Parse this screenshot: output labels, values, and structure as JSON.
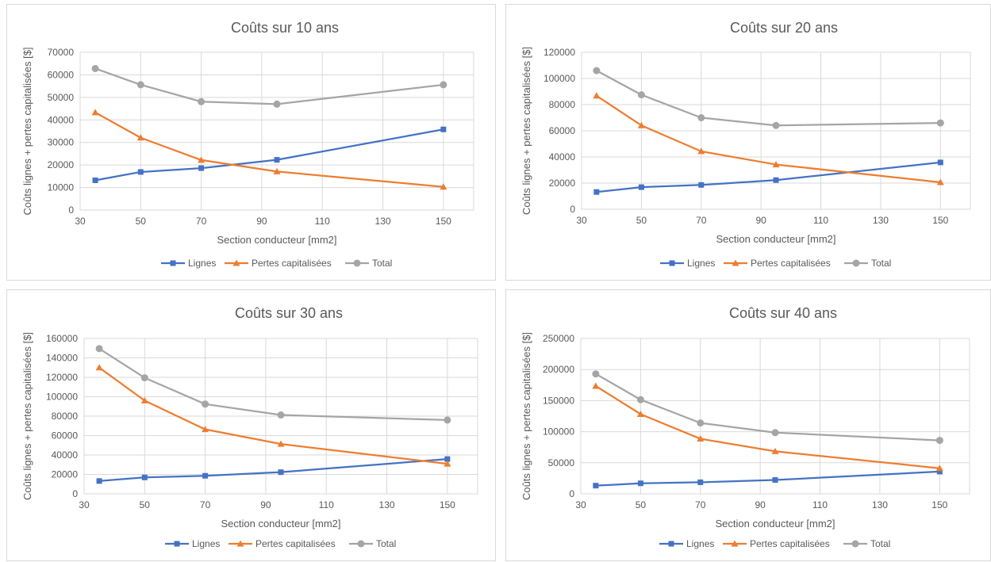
{
  "colors": {
    "Lignes": "#4472c4",
    "Pertes capitalisées": "#ed7d31",
    "Total": "#a5a5a5",
    "grid": "#d9d9d9",
    "text": "#595959"
  },
  "markers": {
    "Lignes": "square",
    "Pertes capitalisées": "triangle",
    "Total": "circle"
  },
  "chart_data": [
    {
      "type": "line",
      "title": "Coûts sur 10 ans",
      "xlabel": "Section conducteur [mm2]",
      "ylabel": "Coûts lignes + pertes capitalisées [$]",
      "xlim": [
        30,
        160
      ],
      "x_ticks": [
        30,
        50,
        70,
        90,
        110,
        130,
        150
      ],
      "ylim": [
        0,
        70000
      ],
      "y_ticks": [
        0,
        10000,
        20000,
        30000,
        40000,
        50000,
        60000,
        70000
      ],
      "grid": true,
      "legend": "bottom",
      "x": [
        35,
        50,
        70,
        95,
        150
      ],
      "series": [
        {
          "name": "Lignes",
          "values": [
            13200,
            16900,
            18600,
            22300,
            35800
          ]
        },
        {
          "name": "Pertes capitalisées",
          "values": [
            43300,
            32100,
            22200,
            17100,
            10300
          ]
        },
        {
          "name": "Total",
          "values": [
            62800,
            55600,
            48100,
            47000,
            55600
          ]
        }
      ]
    },
    {
      "type": "line",
      "title": "Coûts sur 20 ans",
      "xlabel": "Section conducteur [mm2]",
      "ylabel": "Coûts lignes + pertes capitalisées [$]",
      "xlim": [
        30,
        160
      ],
      "x_ticks": [
        30,
        50,
        70,
        90,
        110,
        130,
        150
      ],
      "ylim": [
        0,
        120000
      ],
      "y_ticks": [
        0,
        20000,
        40000,
        60000,
        80000,
        100000,
        120000
      ],
      "grid": true,
      "legend": "bottom",
      "x": [
        35,
        50,
        70,
        95,
        150
      ],
      "series": [
        {
          "name": "Lignes",
          "values": [
            13200,
            16900,
            18600,
            22300,
            35800
          ]
        },
        {
          "name": "Pertes capitalisées",
          "values": [
            86800,
            64100,
            44300,
            34200,
            20600
          ]
        },
        {
          "name": "Total",
          "values": [
            106000,
            87500,
            70000,
            64100,
            66000
          ]
        }
      ]
    },
    {
      "type": "line",
      "title": "Coûts sur 30 ans",
      "xlabel": "Section conducteur [mm2]",
      "ylabel": "Coûts lignes + pertes capitalisées [$]",
      "xlim": [
        30,
        160
      ],
      "x_ticks": [
        30,
        50,
        70,
        90,
        110,
        130,
        150
      ],
      "ylim": [
        0,
        160000
      ],
      "y_ticks": [
        0,
        20000,
        40000,
        60000,
        80000,
        100000,
        120000,
        140000,
        160000
      ],
      "grid": true,
      "legend": "bottom",
      "x": [
        35,
        50,
        70,
        95,
        150
      ],
      "series": [
        {
          "name": "Lignes",
          "values": [
            13200,
            16900,
            18600,
            22300,
            35800
          ]
        },
        {
          "name": "Pertes capitalisées",
          "values": [
            130000,
            96000,
            66400,
            51300,
            30900
          ]
        },
        {
          "name": "Total",
          "values": [
            149500,
            119500,
            92400,
            81200,
            76000
          ]
        }
      ]
    },
    {
      "type": "line",
      "title": "Coûts sur 40 ans",
      "xlabel": "Section conducteur [mm2]",
      "ylabel": "Coûts lignes + pertes capitalisées [$]",
      "xlim": [
        30,
        160
      ],
      "x_ticks": [
        30,
        50,
        70,
        90,
        110,
        130,
        150
      ],
      "ylim": [
        0,
        250000
      ],
      "y_ticks": [
        0,
        50000,
        100000,
        150000,
        200000,
        250000
      ],
      "grid": true,
      "legend": "bottom",
      "x": [
        35,
        50,
        70,
        95,
        150
      ],
      "series": [
        {
          "name": "Lignes",
          "values": [
            13200,
            16900,
            18600,
            22300,
            35800
          ]
        },
        {
          "name": "Pertes capitalisées",
          "values": [
            173500,
            128200,
            88600,
            68400,
            41200
          ]
        },
        {
          "name": "Total",
          "values": [
            193000,
            151500,
            114000,
            98500,
            86000
          ]
        }
      ]
    }
  ]
}
